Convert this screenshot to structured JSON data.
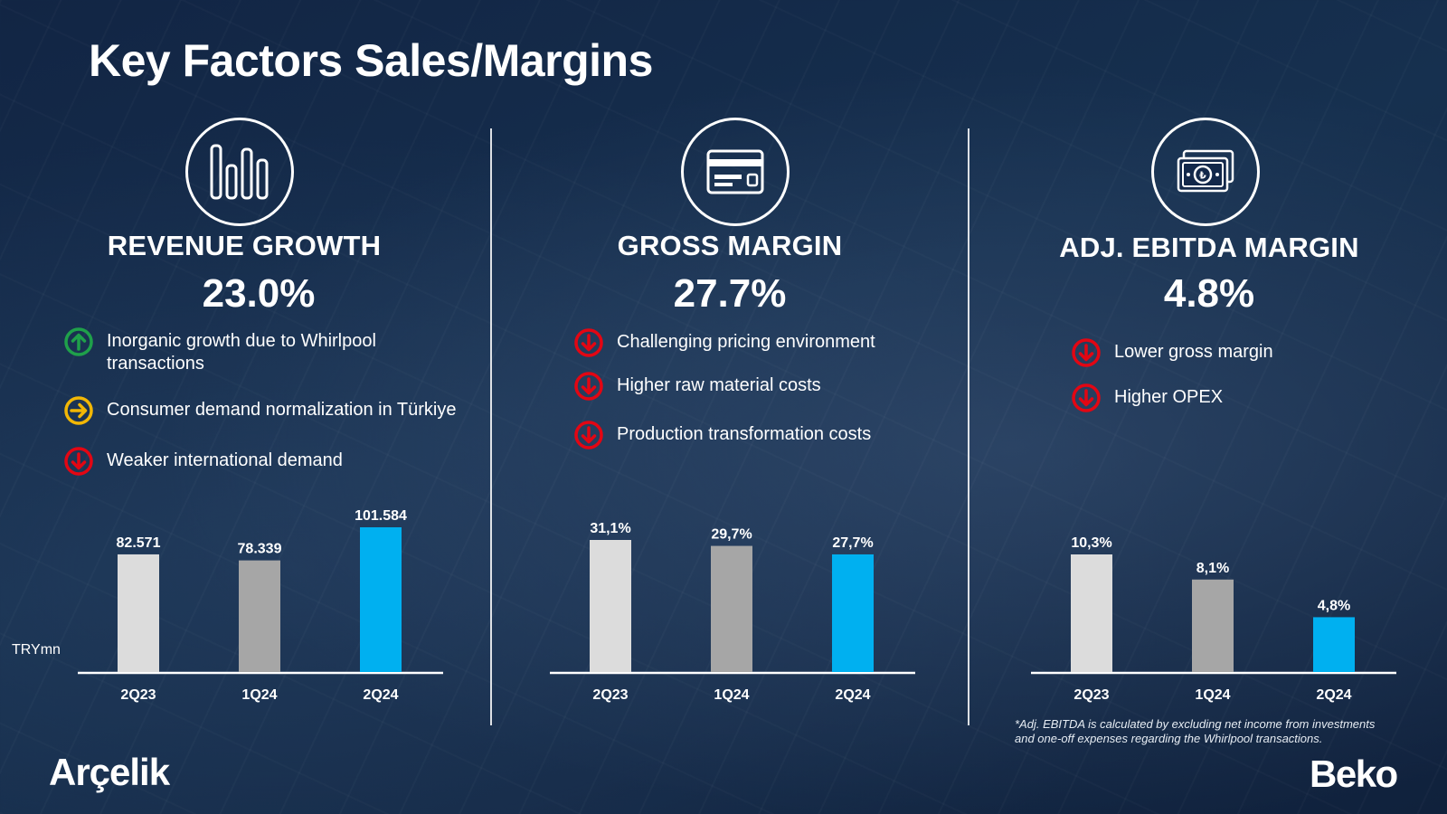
{
  "title": "Key Factors Sales/Margins",
  "colors": {
    "background": "#13284a",
    "bar_2q23": "#dcdcdc",
    "bar_1q24": "#a6a6a6",
    "bar_2q24": "#00b0f0",
    "up_icon": "#1fa04a",
    "neutral_icon": "#f2b705",
    "down_icon": "#e30613"
  },
  "panels": [
    {
      "icon": "bar-chart-icon",
      "heading": "REVENUE GROWTH",
      "value": "23.0%",
      "factors": [
        {
          "icon": "arrow-up-circle-icon",
          "text_line1": "Inorganic growth due to Whirlpool",
          "text_line2": "transactions"
        },
        {
          "icon": "arrow-right-circle-icon",
          "text_line1": "Consumer demand normalization in Türkiye",
          "text_line2": ""
        },
        {
          "icon": "arrow-down-circle-icon",
          "text_line1": "Weaker international demand",
          "text_line2": ""
        }
      ],
      "unit_label": "TRYmn"
    },
    {
      "icon": "credit-card-icon",
      "heading": "GROSS MARGIN",
      "value": "27.7%",
      "factors": [
        {
          "icon": "arrow-down-circle-icon",
          "text_line1": "Challenging pricing environment",
          "text_line2": ""
        },
        {
          "icon": "arrow-down-circle-icon",
          "text_line1": "Higher raw material costs",
          "text_line2": ""
        },
        {
          "icon": "arrow-down-circle-icon",
          "text_line1": "Production transformation costs",
          "text_line2": ""
        }
      ]
    },
    {
      "icon": "banknote-icon",
      "heading": "ADJ. EBITDA MARGIN",
      "value": "4.8%",
      "factors": [
        {
          "icon": "arrow-down-circle-icon",
          "text_line1": "Lower gross margin",
          "text_line2": ""
        },
        {
          "icon": "arrow-down-circle-icon",
          "text_line1": "Higher OPEX",
          "text_line2": ""
        }
      ]
    }
  ],
  "chart_data": [
    {
      "type": "bar",
      "categories": [
        "2Q23",
        "1Q24",
        "2Q24"
      ],
      "values": [
        82571,
        78339,
        101584
      ],
      "value_labels": [
        "82.571",
        "78.339",
        "101.584"
      ],
      "unit": "TRYmn",
      "ylim": [
        0,
        101584
      ],
      "grid": false
    },
    {
      "type": "bar",
      "categories": [
        "2Q23",
        "1Q24",
        "2Q24"
      ],
      "values": [
        31.1,
        29.7,
        27.7
      ],
      "value_labels": [
        "31,1%",
        "29,7%",
        "27,7%"
      ],
      "ylim": [
        0,
        31.1
      ],
      "grid": false
    },
    {
      "type": "bar",
      "categories": [
        "2Q23",
        "1Q24",
        "2Q24"
      ],
      "values": [
        10.3,
        8.1,
        4.8
      ],
      "value_labels": [
        "10,3%",
        "8,1%",
        "4,8%"
      ],
      "ylim": [
        0,
        10.3
      ],
      "grid": false
    }
  ],
  "footnote_line1": "*Adj. EBITDA is calculated by excluding net income from investments",
  "footnote_line2": "and one-off expenses regarding the Whirlpool transactions.",
  "logos": {
    "left": "Arçelik",
    "right": "Beko"
  }
}
